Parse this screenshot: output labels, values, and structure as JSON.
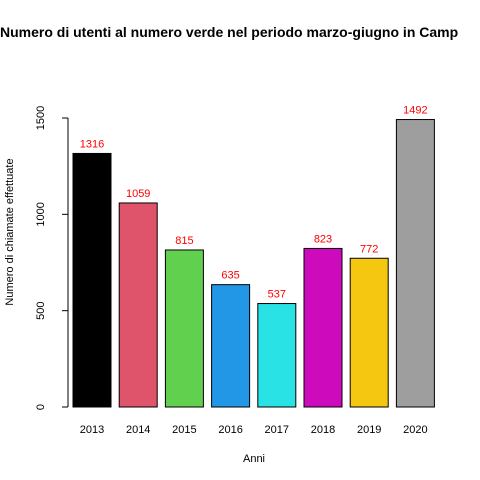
{
  "chart_data": {
    "type": "bar",
    "title": "Numero di utenti al numero verde nel periodo marzo-giugno in Camp",
    "xlabel": "Anni",
    "ylabel": "Numero di chiamate effettuate",
    "categories": [
      "2013",
      "2014",
      "2015",
      "2016",
      "2017",
      "2018",
      "2019",
      "2020"
    ],
    "values": [
      1316,
      1059,
      815,
      635,
      537,
      823,
      772,
      1492
    ],
    "data_labels": [
      "1316",
      "1059",
      "815",
      "635",
      "537",
      "823",
      "772",
      "1492"
    ],
    "bar_colors": [
      "#000000",
      "#df536b",
      "#61d04f",
      "#2297e6",
      "#28e2e5",
      "#cd0bbc",
      "#f5c710",
      "#9e9e9e"
    ],
    "label_color": "#ff0000",
    "ylim": [
      0,
      1500
    ],
    "yticks": [
      0,
      500,
      1000,
      1500
    ],
    "ytick_labels": [
      "0",
      "500",
      "1000",
      "1500"
    ],
    "grid": false,
    "legend": "none"
  }
}
